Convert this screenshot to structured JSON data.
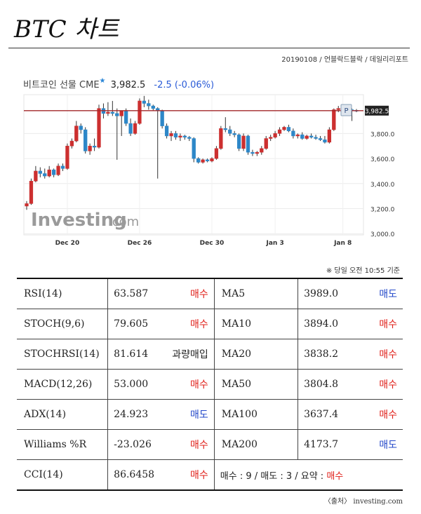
{
  "title": "BTC 차트",
  "byline": "20190108 / 언블락드블락 / 데일리리포트",
  "quote": {
    "name": "비트코인 선물 CME",
    "price": "3,982.5",
    "change": "-2.5 (-0.06%)"
  },
  "watermark": "Investing",
  "watermark_suffix": ".com",
  "current_price_label": "3,982.5",
  "marker_label": "P",
  "chart_data": {
    "type": "candlestick",
    "x_tick_labels": [
      "Dec 20",
      "Dec 26",
      "Dec 30",
      "Jan 3",
      "Jan 8"
    ],
    "y_tick_labels": [
      "3,000.0",
      "3,200.0",
      "3,400.0",
      "3,600.0",
      "3,800.0"
    ],
    "ylim": [
      2990,
      4110
    ],
    "current_price": 3982.5,
    "grid": true,
    "candles": [
      {
        "o": 3220,
        "h": 3260,
        "l": 3190,
        "c": 3240
      },
      {
        "o": 3240,
        "h": 3440,
        "l": 3230,
        "c": 3420
      },
      {
        "o": 3420,
        "h": 3540,
        "l": 3410,
        "c": 3500
      },
      {
        "o": 3500,
        "h": 3530,
        "l": 3450,
        "c": 3480
      },
      {
        "o": 3480,
        "h": 3520,
        "l": 3440,
        "c": 3460
      },
      {
        "o": 3460,
        "h": 3540,
        "l": 3450,
        "c": 3510
      },
      {
        "o": 3510,
        "h": 3520,
        "l": 3450,
        "c": 3470
      },
      {
        "o": 3470,
        "h": 3560,
        "l": 3460,
        "c": 3540
      },
      {
        "o": 3540,
        "h": 3560,
        "l": 3500,
        "c": 3520
      },
      {
        "o": 3520,
        "h": 3720,
        "l": 3510,
        "c": 3700
      },
      {
        "o": 3700,
        "h": 3760,
        "l": 3680,
        "c": 3740
      },
      {
        "o": 3740,
        "h": 3900,
        "l": 3730,
        "c": 3860
      },
      {
        "o": 3860,
        "h": 3880,
        "l": 3800,
        "c": 3830
      },
      {
        "o": 3830,
        "h": 3850,
        "l": 3640,
        "c": 3660
      },
      {
        "o": 3660,
        "h": 3720,
        "l": 3630,
        "c": 3700
      },
      {
        "o": 3700,
        "h": 3760,
        "l": 3660,
        "c": 3690
      },
      {
        "o": 3690,
        "h": 4030,
        "l": 3680,
        "c": 4000
      },
      {
        "o": 4000,
        "h": 4040,
        "l": 3920,
        "c": 3960
      },
      {
        "o": 3960,
        "h": 4050,
        "l": 3940,
        "c": 3970
      },
      {
        "o": 3970,
        "h": 4060,
        "l": 3940,
        "c": 3960
      },
      {
        "o": 3960,
        "h": 4000,
        "l": 3590,
        "c": 3940
      },
      {
        "o": 3940,
        "h": 3970,
        "l": 3780,
        "c": 3980
      },
      {
        "o": 3980,
        "h": 4000,
        "l": 3860,
        "c": 3880
      },
      {
        "o": 3880,
        "h": 3920,
        "l": 3780,
        "c": 3800
      },
      {
        "o": 3800,
        "h": 3900,
        "l": 3790,
        "c": 3880
      },
      {
        "o": 3880,
        "h": 4080,
        "l": 3870,
        "c": 4060
      },
      {
        "o": 4060,
        "h": 4100,
        "l": 4010,
        "c": 4040
      },
      {
        "o": 4040,
        "h": 4070,
        "l": 3990,
        "c": 4020
      },
      {
        "o": 4020,
        "h": 4030,
        "l": 3980,
        "c": 4000
      },
      {
        "o": 4000,
        "h": 4010,
        "l": 3440,
        "c": 3980
      },
      {
        "o": 3980,
        "h": 3990,
        "l": 3840,
        "c": 3860
      },
      {
        "o": 3860,
        "h": 3880,
        "l": 3760,
        "c": 3780
      },
      {
        "o": 3780,
        "h": 3820,
        "l": 3740,
        "c": 3800
      },
      {
        "o": 3800,
        "h": 3820,
        "l": 3750,
        "c": 3770
      },
      {
        "o": 3770,
        "h": 3800,
        "l": 3740,
        "c": 3780
      },
      {
        "o": 3780,
        "h": 3790,
        "l": 3750,
        "c": 3770
      },
      {
        "o": 3770,
        "h": 3780,
        "l": 3740,
        "c": 3760
      },
      {
        "o": 3760,
        "h": 3770,
        "l": 3570,
        "c": 3600
      },
      {
        "o": 3600,
        "h": 3610,
        "l": 3560,
        "c": 3570
      },
      {
        "o": 3570,
        "h": 3600,
        "l": 3560,
        "c": 3590
      },
      {
        "o": 3590,
        "h": 3600,
        "l": 3570,
        "c": 3580
      },
      {
        "o": 3580,
        "h": 3610,
        "l": 3570,
        "c": 3600
      },
      {
        "o": 3600,
        "h": 3700,
        "l": 3590,
        "c": 3680
      },
      {
        "o": 3680,
        "h": 3860,
        "l": 3670,
        "c": 3840
      },
      {
        "o": 3840,
        "h": 3930,
        "l": 3810,
        "c": 3830
      },
      {
        "o": 3830,
        "h": 3860,
        "l": 3780,
        "c": 3800
      },
      {
        "o": 3800,
        "h": 3820,
        "l": 3770,
        "c": 3790
      },
      {
        "o": 3790,
        "h": 3800,
        "l": 3660,
        "c": 3680
      },
      {
        "o": 3680,
        "h": 3800,
        "l": 3660,
        "c": 3780
      },
      {
        "o": 3780,
        "h": 3790,
        "l": 3630,
        "c": 3650
      },
      {
        "o": 3650,
        "h": 3670,
        "l": 3620,
        "c": 3640
      },
      {
        "o": 3640,
        "h": 3660,
        "l": 3620,
        "c": 3650
      },
      {
        "o": 3650,
        "h": 3700,
        "l": 3630,
        "c": 3680
      },
      {
        "o": 3680,
        "h": 3780,
        "l": 3670,
        "c": 3760
      },
      {
        "o": 3760,
        "h": 3790,
        "l": 3740,
        "c": 3770
      },
      {
        "o": 3770,
        "h": 3820,
        "l": 3760,
        "c": 3800
      },
      {
        "o": 3800,
        "h": 3850,
        "l": 3780,
        "c": 3830
      },
      {
        "o": 3830,
        "h": 3860,
        "l": 3820,
        "c": 3850
      },
      {
        "o": 3850,
        "h": 3870,
        "l": 3810,
        "c": 3820
      },
      {
        "o": 3820,
        "h": 3840,
        "l": 3760,
        "c": 3780
      },
      {
        "o": 3780,
        "h": 3800,
        "l": 3760,
        "c": 3790
      },
      {
        "o": 3790,
        "h": 3810,
        "l": 3750,
        "c": 3760
      },
      {
        "o": 3760,
        "h": 3790,
        "l": 3750,
        "c": 3780
      },
      {
        "o": 3780,
        "h": 3800,
        "l": 3760,
        "c": 3770
      },
      {
        "o": 3770,
        "h": 3790,
        "l": 3750,
        "c": 3760
      },
      {
        "o": 3760,
        "h": 3780,
        "l": 3740,
        "c": 3750
      },
      {
        "o": 3750,
        "h": 3780,
        "l": 3720,
        "c": 3730
      },
      {
        "o": 3730,
        "h": 3850,
        "l": 3720,
        "c": 3830
      },
      {
        "o": 3830,
        "h": 4000,
        "l": 3820,
        "c": 3990
      },
      {
        "o": 3990,
        "h": 4020,
        "l": 3970,
        "c": 4000
      },
      {
        "o": 4000,
        "h": 4010,
        "l": 3960,
        "c": 3980
      },
      {
        "o": 3980,
        "h": 4000,
        "l": 3950,
        "c": 3990
      },
      {
        "o": 3990,
        "h": 4000,
        "l": 3900,
        "c": 3985
      },
      {
        "o": 3985,
        "h": 3995,
        "l": 3970,
        "c": 3982.5
      }
    ]
  },
  "as_of": "※ 당일 오전 10:55 기준",
  "indicators": [
    {
      "name": "RSI(14)",
      "value": "63.587",
      "action": "매수",
      "tone": "buy",
      "ma_name": "MA5",
      "ma_value": "3989.0",
      "ma_action": "매도",
      "ma_tone": "sell"
    },
    {
      "name": "STOCH(9,6)",
      "value": "79.605",
      "action": "매수",
      "tone": "buy",
      "ma_name": "MA10",
      "ma_value": "3894.0",
      "ma_action": "매수",
      "ma_tone": "buy"
    },
    {
      "name": "STOCHRSI(14)",
      "value": "81.614",
      "action": "과량매입",
      "tone": "neutral",
      "ma_name": "MA20",
      "ma_value": "3838.2",
      "ma_action": "매수",
      "ma_tone": "buy"
    },
    {
      "name": "MACD(12,26)",
      "value": "53.000",
      "action": "매수",
      "tone": "buy",
      "ma_name": "MA50",
      "ma_value": "3804.8",
      "ma_action": "매수",
      "ma_tone": "buy"
    },
    {
      "name": "ADX(14)",
      "value": "24.923",
      "action": "매도",
      "tone": "sell",
      "ma_name": "MA100",
      "ma_value": "3637.4",
      "ma_action": "매수",
      "ma_tone": "buy"
    },
    {
      "name": "Williams %R",
      "value": "-23.026",
      "action": "매수",
      "tone": "buy",
      "ma_name": "MA200",
      "ma_value": "4173.7",
      "ma_action": "매도",
      "ma_tone": "sell"
    }
  ],
  "last_row": {
    "name": "CCI(14)",
    "value": "86.6458",
    "action": "매수",
    "tone": "buy",
    "summary_prefix": "매수 : 9 / 매도 : 3 / 요약 : ",
    "summary_result": "매수"
  },
  "source": "〈출처〉 investing.com",
  "colors": {
    "up": "#cc2f2f",
    "down": "#2d87c8",
    "price_line": "#a3272a",
    "buy": "#e0201a",
    "sell": "#2348c9"
  }
}
